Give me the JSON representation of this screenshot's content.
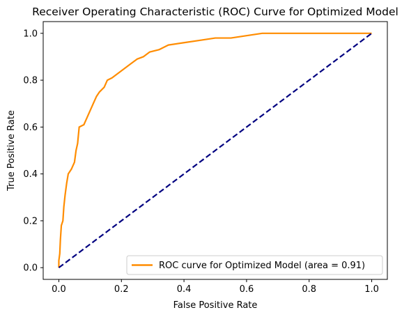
{
  "chart_data": {
    "type": "line",
    "title": "Receiver Operating Characteristic (ROC) Curve for Optimized Model",
    "xlabel": "False Positive Rate",
    "ylabel": "True Positive Rate",
    "xlim": [
      -0.05,
      1.05
    ],
    "ylim": [
      -0.05,
      1.05
    ],
    "xticks": [
      "0.0",
      "0.2",
      "0.4",
      "0.6",
      "0.8",
      "1.0"
    ],
    "yticks": [
      "0.0",
      "0.2",
      "0.4",
      "0.6",
      "0.8",
      "1.0"
    ],
    "grid": false,
    "legend_position": "lower-right",
    "legend": [
      "ROC curve for Optimized Model (area = 0.91)"
    ],
    "series": [
      {
        "name": "ROC curve for Optimized Model (area = 0.91)",
        "color": "#ff8c00",
        "style": "solid",
        "points": [
          [
            0.0,
            0.0
          ],
          [
            0.0,
            0.03
          ],
          [
            0.003,
            0.06
          ],
          [
            0.005,
            0.12
          ],
          [
            0.008,
            0.18
          ],
          [
            0.013,
            0.2
          ],
          [
            0.016,
            0.26
          ],
          [
            0.02,
            0.31
          ],
          [
            0.025,
            0.36
          ],
          [
            0.03,
            0.4
          ],
          [
            0.04,
            0.42
          ],
          [
            0.05,
            0.45
          ],
          [
            0.055,
            0.5
          ],
          [
            0.06,
            0.53
          ],
          [
            0.065,
            0.6
          ],
          [
            0.08,
            0.61
          ],
          [
            0.09,
            0.64
          ],
          [
            0.1,
            0.67
          ],
          [
            0.11,
            0.7
          ],
          [
            0.12,
            0.73
          ],
          [
            0.13,
            0.75
          ],
          [
            0.145,
            0.77
          ],
          [
            0.155,
            0.8
          ],
          [
            0.17,
            0.81
          ],
          [
            0.19,
            0.83
          ],
          [
            0.21,
            0.85
          ],
          [
            0.23,
            0.87
          ],
          [
            0.25,
            0.89
          ],
          [
            0.27,
            0.9
          ],
          [
            0.29,
            0.92
          ],
          [
            0.32,
            0.93
          ],
          [
            0.35,
            0.95
          ],
          [
            0.4,
            0.96
          ],
          [
            0.45,
            0.97
          ],
          [
            0.5,
            0.98
          ],
          [
            0.55,
            0.98
          ],
          [
            0.6,
            0.99
          ],
          [
            0.65,
            1.0
          ],
          [
            1.0,
            1.0
          ]
        ]
      },
      {
        "name": "",
        "color": "#000080",
        "style": "dashed",
        "points": [
          [
            0.0,
            0.0
          ],
          [
            1.0,
            1.0
          ]
        ]
      }
    ]
  }
}
